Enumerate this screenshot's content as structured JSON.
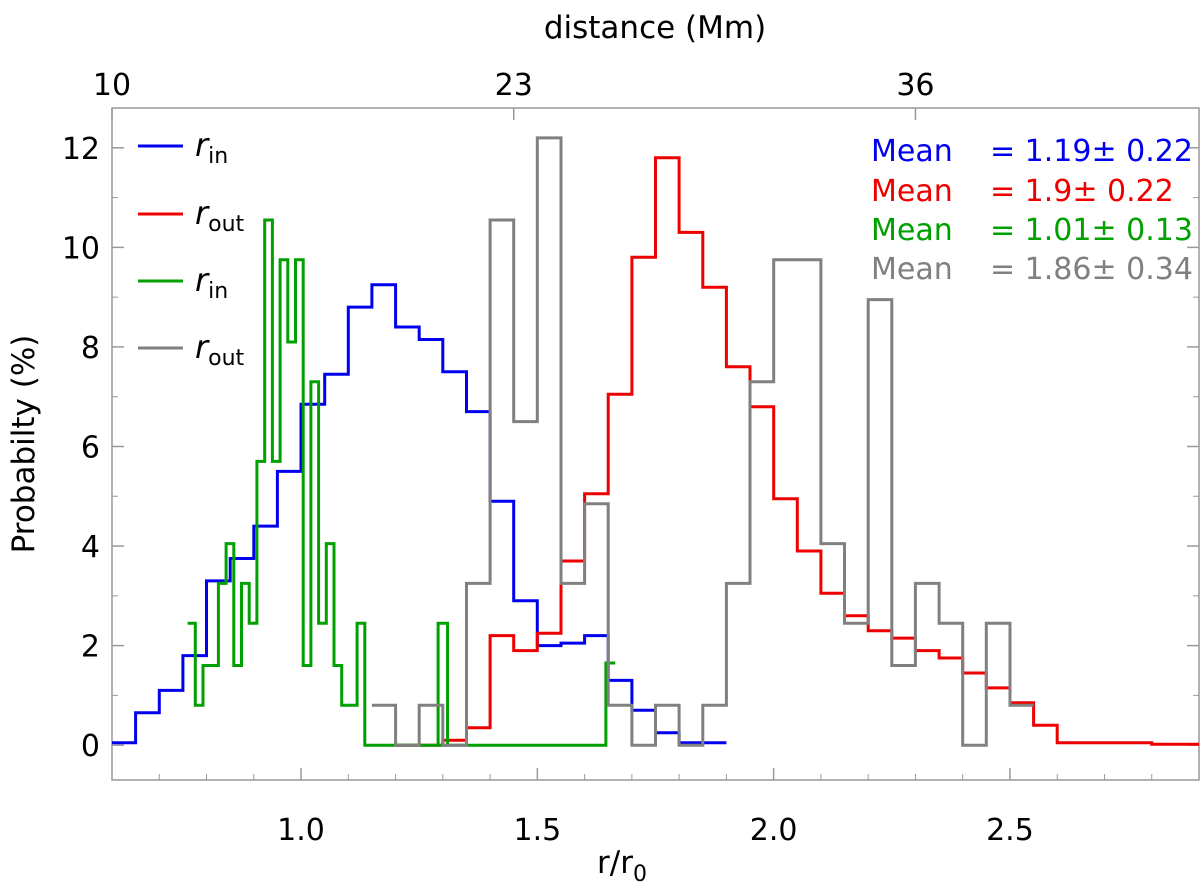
{
  "chart_data": {
    "type": "step-histogram",
    "xlabel": {
      "main": "r/r",
      "sub": "0"
    },
    "ylabel": "Probabilty  (%)",
    "top_axis_label": "distance  (Mm)",
    "xlim": [
      0.6,
      2.9
    ],
    "ylim": [
      -0.7,
      12.8
    ],
    "x_ticks": [
      {
        "value": 1.0,
        "label": "1.0"
      },
      {
        "value": 1.5,
        "label": "1.5"
      },
      {
        "value": 2.0,
        "label": "2.0"
      },
      {
        "value": 2.5,
        "label": "2.5"
      }
    ],
    "y_ticks": [
      {
        "value": 0,
        "label": "0"
      },
      {
        "value": 2,
        "label": "2"
      },
      {
        "value": 4,
        "label": "4"
      },
      {
        "value": 6,
        "label": "6"
      },
      {
        "value": 8,
        "label": "8"
      },
      {
        "value": 10,
        "label": "10"
      },
      {
        "value": 12,
        "label": "12"
      }
    ],
    "top_ticks": [
      {
        "value": 0.6,
        "label": "10"
      },
      {
        "value": 1.45,
        "label": "23"
      },
      {
        "value": 2.3,
        "label": "36"
      }
    ],
    "colors": {
      "blue": "#0000ee",
      "red": "#ee0000",
      "green": "#00a000",
      "gray": "#808080",
      "frame": "#999999"
    },
    "series": [
      {
        "name": "r_in (blue)",
        "legend": {
          "main": "r",
          "sub": "in"
        },
        "color": "#0000ee",
        "mean_label": "Mean",
        "mean_value": "= 1.19± 0.22",
        "edges_start": 0.6,
        "bin_width": 0.05,
        "end": 1.9,
        "values": [
          0.05,
          0.65,
          1.1,
          1.8,
          3.3,
          3.75,
          4.4,
          5.5,
          6.85,
          7.45,
          8.8,
          9.25,
          8.4,
          8.15,
          7.5,
          6.7,
          4.9,
          2.9,
          2.0,
          2.05,
          2.2,
          1.3,
          0.7,
          0.25,
          0.05,
          0.05
        ]
      },
      {
        "name": "r_out (red)",
        "legend": {
          "main": "r",
          "sub": "out"
        },
        "color": "#ee0000",
        "mean_label": "Mean",
        "mean_value": "= 1.9± 0.22",
        "edges_start": 1.2,
        "bin_width": 0.05,
        "end": 2.9,
        "values": [
          0.0,
          0.0,
          0.1,
          0.35,
          2.2,
          1.9,
          2.25,
          3.7,
          5.05,
          7.05,
          9.8,
          11.8,
          10.3,
          9.2,
          7.6,
          6.8,
          4.95,
          3.9,
          3.05,
          2.6,
          2.3,
          2.15,
          1.9,
          1.75,
          1.45,
          1.15,
          0.85,
          0.4,
          0.05,
          0.05,
          0.05,
          0.05,
          0.02,
          0.02
        ]
      },
      {
        "name": "r_in (green)",
        "legend": {
          "main": "r",
          "sub": "in"
        },
        "color": "#00a000",
        "mean_label": "Mean",
        "mean_value": "= 1.01± 0.13",
        "edges_start": 0.76,
        "bin_width": 0.0163,
        "end": 1.65,
        "values": [
          2.45,
          0.8,
          1.6,
          1.6,
          3.25,
          4.05,
          1.6,
          3.25,
          2.45,
          5.7,
          10.55,
          5.7,
          9.75,
          8.1,
          9.75,
          1.6,
          7.3,
          2.45,
          4.05,
          1.6,
          0.8,
          0.8,
          2.45,
          0.0,
          0.0,
          0.0,
          0.0,
          0.0,
          0.0,
          0.0,
          0.0,
          0.0,
          0.0,
          0.0,
          0.0,
          0.0,
          0.0,
          0.0,
          0.0,
          0.0,
          0.0,
          0.0,
          0.0,
          0.0,
          0.0,
          0.0,
          0.0,
          0.0,
          0.0,
          0.0,
          0.0,
          0.0,
          0.0,
          0.0
        ],
        "overrides": [
          {
            "x0": 1.2,
            "x1": 1.25,
            "y": 0.0
          },
          {
            "x0": 1.29,
            "x1": 1.31,
            "y": 2.45
          }
        ],
        "tail": {
          "x0": 1.3,
          "x1": 1.645,
          "y": 0.0,
          "jump": 1.65
        }
      },
      {
        "name": "r_out (gray)",
        "legend": {
          "main": "r",
          "sub": "out"
        },
        "color": "#808080",
        "mean_label": "Mean",
        "mean_value": "= 1.86± 0.34",
        "edges_start": 1.15,
        "bin_width": 0.05,
        "end": 2.55,
        "values": [
          0.8,
          0.0,
          0.8,
          0.0,
          3.25,
          10.55,
          6.5,
          12.2,
          3.25,
          4.85,
          0.8,
          0.0,
          0.8,
          0.0,
          0.8,
          3.25,
          7.3,
          9.75,
          9.75,
          4.05,
          2.45,
          8.95,
          1.6,
          3.25,
          2.45,
          0.0,
          2.45,
          0.8
        ]
      }
    ]
  }
}
